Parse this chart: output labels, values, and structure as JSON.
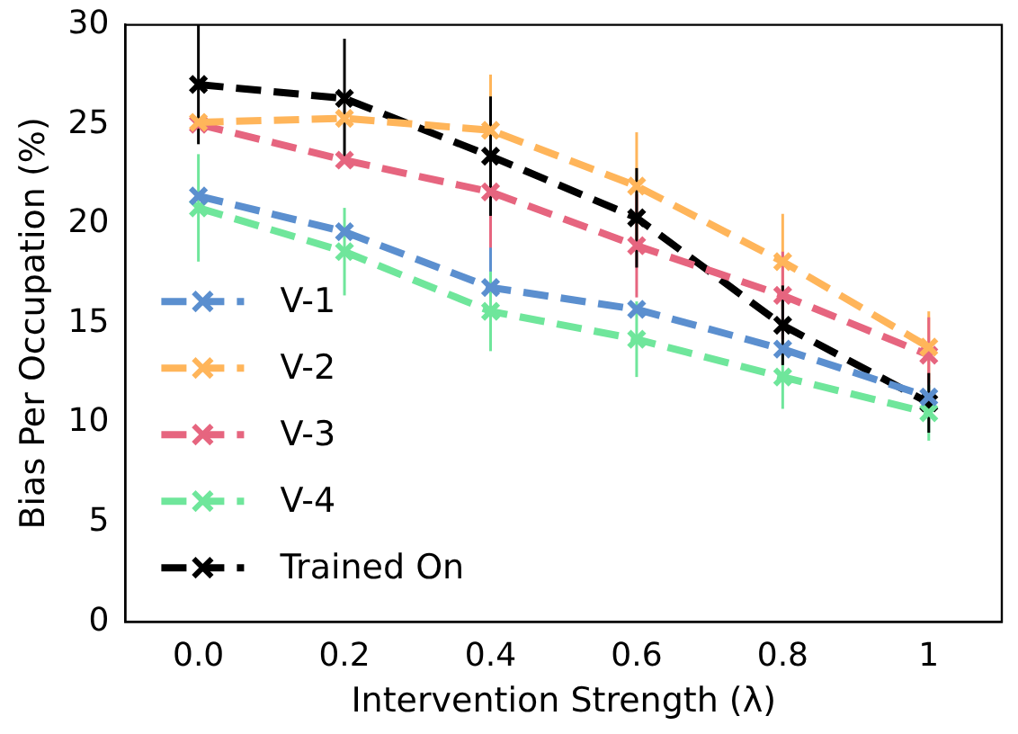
{
  "chart_data": {
    "type": "line",
    "xlabel": "Intervention Strength (λ)",
    "ylabel": "Bias Per Occupation (%)",
    "categories": [
      "0.0",
      "0.2",
      "0.4",
      "0.6",
      "0.8",
      "1"
    ],
    "series": [
      {
        "name": "V-1",
        "color": "#5b8fcf",
        "values": [
          21.4,
          19.6,
          16.8,
          15.7,
          13.7,
          11.3
        ],
        "errors": [
          null,
          null,
          2.1,
          null,
          null,
          null
        ]
      },
      {
        "name": "V-2",
        "color": "#ffb55a",
        "values": [
          25.1,
          25.3,
          24.7,
          21.9,
          18.1,
          13.8
        ],
        "errors": [
          null,
          null,
          2.8,
          2.7,
          2.4,
          1.8
        ]
      },
      {
        "name": "V-3",
        "color": "#e6657f",
        "values": [
          25.0,
          23.2,
          21.6,
          18.9,
          16.4,
          13.4
        ],
        "errors": [
          null,
          null,
          2.8,
          2.6,
          2.2,
          1.9
        ]
      },
      {
        "name": "V-4",
        "color": "#6fe69b",
        "values": [
          20.8,
          18.6,
          15.6,
          14.2,
          12.3,
          10.5
        ],
        "errors": [
          2.7,
          2.2,
          2.0,
          1.9,
          1.6,
          1.4
        ]
      },
      {
        "name": "Trained On",
        "color": "#000000",
        "values": [
          27.0,
          26.3,
          23.4,
          20.3,
          14.9,
          11.0
        ],
        "errors": [
          3.0,
          3.0,
          3.0,
          2.5,
          2.0,
          1.5
        ]
      }
    ],
    "ylim": [
      0,
      30
    ],
    "yticks": [
      0,
      5,
      10,
      15,
      20,
      25,
      30
    ],
    "grid": false,
    "legend": "bottom left",
    "marker": "cross",
    "line_style": "dashed"
  }
}
